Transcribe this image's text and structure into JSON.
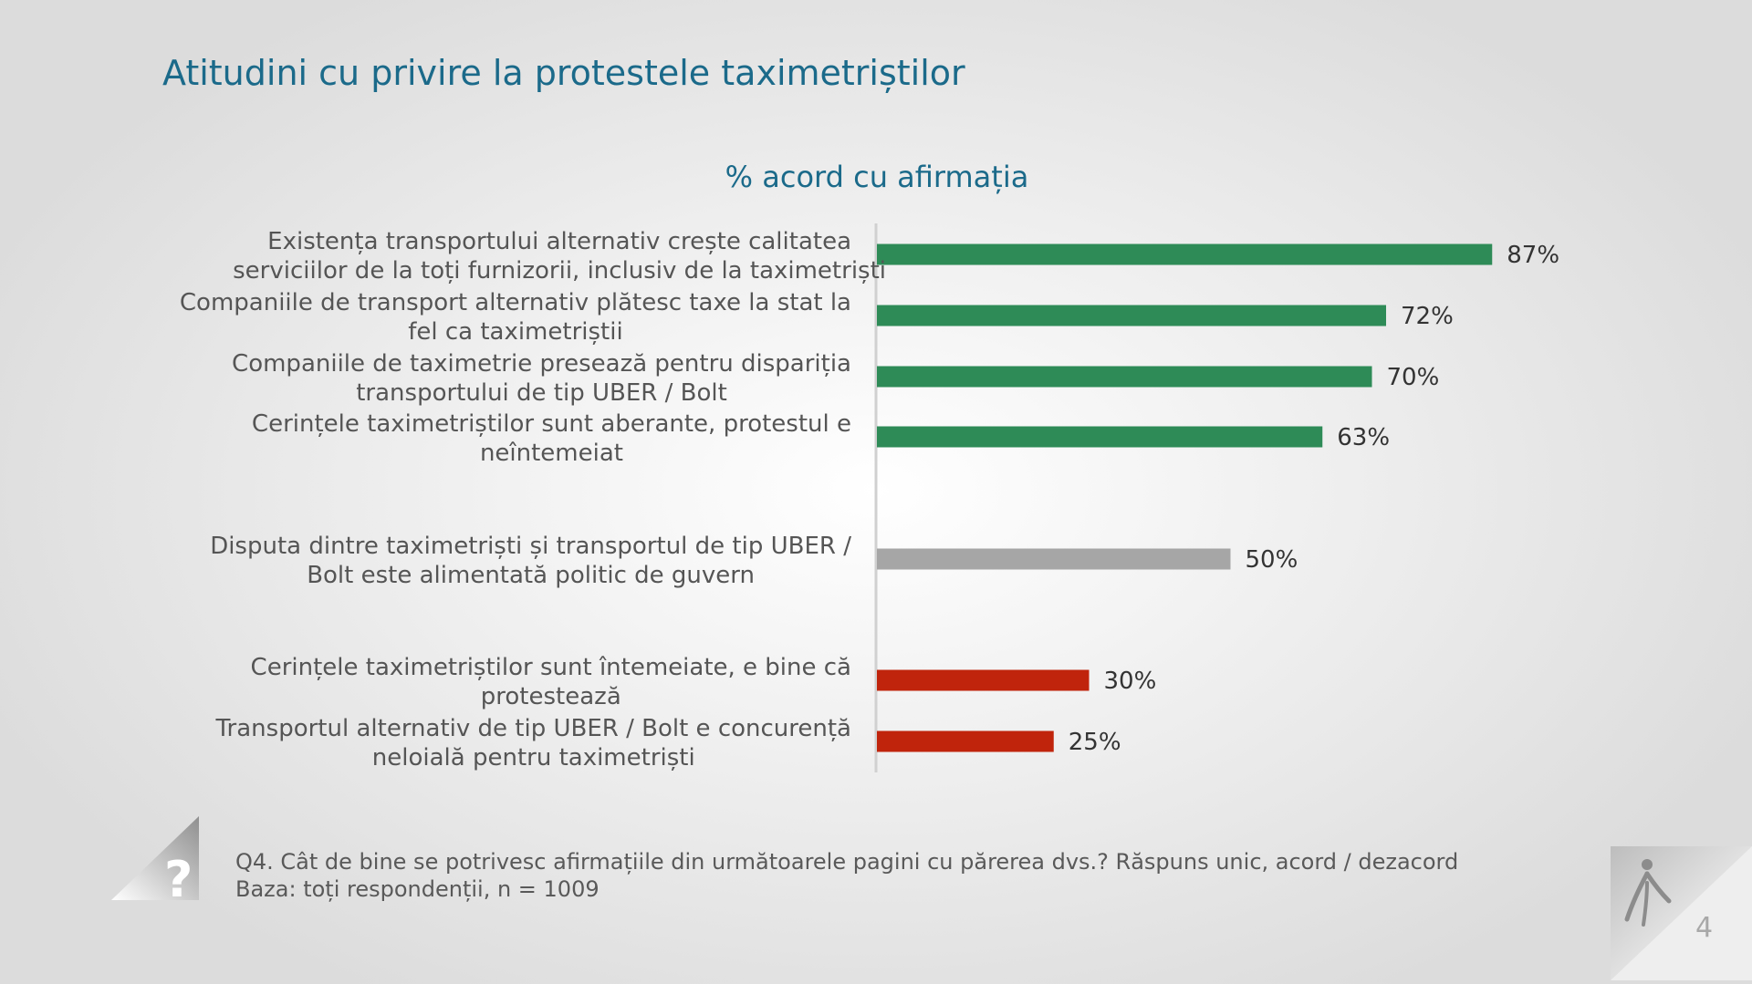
{
  "title": "Atitudini cu privire la protestele taximetriștilor",
  "subtitle": "% acord cu afirmația",
  "footnote": {
    "question": "Q4. Cât de bine se potrivesc afirmațiile din următoarele pagini cu părerea dvs.? Răspuns unic, acord / dezacord",
    "base": "Baza: toți respondenții, n = 1009"
  },
  "page_number": "4",
  "icons": {
    "question": "question-mark-icon",
    "logo": "person-logo-icon"
  },
  "colors": {
    "green": "#2e8b57",
    "gray": "#a6a6a6",
    "red": "#c0240c",
    "title": "#1b6a8a"
  },
  "chart_data": {
    "type": "bar",
    "orientation": "horizontal",
    "title": "% acord cu afirmația",
    "xlim": [
      0,
      100
    ],
    "grid": false,
    "legend": "none",
    "categories": [
      [
        "Existența transportului alternativ crește calitatea",
        "serviciilor de la toți furnizorii, inclusiv de la taximetriști"
      ],
      [
        "Companiile de transport alternativ plătesc taxe la stat la",
        "fel ca taximetriștii"
      ],
      [
        "Companiile de taximetrie presează pentru dispariția",
        "transportului de tip UBER / Bolt"
      ],
      [
        "Cerințele taximetriștilor sunt aberante, protestul e",
        "neîntemeiat"
      ],
      [
        "Disputa dintre taximetriști și transportul de tip UBER /",
        "Bolt este alimentată politic de guvern"
      ],
      [
        "Cerințele taximetriștilor sunt întemeiate, e bine că",
        "protestează"
      ],
      [
        "Transportul alternativ de tip UBER / Bolt e concurență",
        "neloială pentru taximetriști"
      ]
    ],
    "values": [
      87,
      72,
      70,
      63,
      50,
      30,
      25
    ],
    "value_labels": [
      "87%",
      "72%",
      "70%",
      "63%",
      "50%",
      "30%",
      "25%"
    ],
    "bar_colors": [
      "#2e8b57",
      "#2e8b57",
      "#2e8b57",
      "#2e8b57",
      "#a6a6a6",
      "#c0240c",
      "#c0240c"
    ]
  }
}
